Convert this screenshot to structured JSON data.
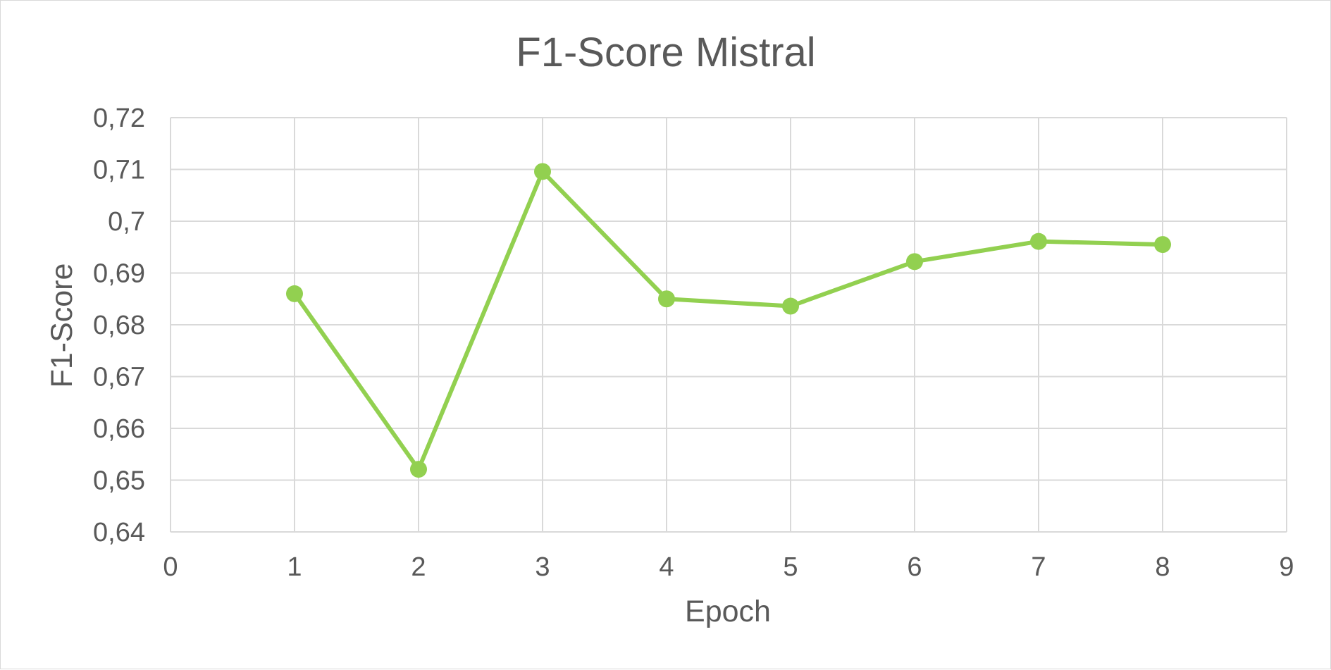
{
  "chart_data": {
    "type": "scatter",
    "title": "F1-Score Mistral",
    "xlabel": "Epoch",
    "ylabel": "F1-Score",
    "xlim": [
      0,
      9
    ],
    "ylim": [
      0.64,
      0.72
    ],
    "x_ticks": [
      "0",
      "1",
      "2",
      "3",
      "4",
      "5",
      "6",
      "7",
      "8",
      "9"
    ],
    "y_ticks": [
      "0,64",
      "0,65",
      "0,66",
      "0,67",
      "0,68",
      "0,69",
      "0,7",
      "0,71",
      "0,72"
    ],
    "grid": true,
    "legend": "none",
    "series": [
      {
        "color": "#92d050",
        "marker": "circle",
        "line": "straight",
        "x": [
          1,
          2,
          3,
          4,
          5,
          6,
          7,
          8
        ],
        "y": [
          0.686,
          0.6521,
          0.7096,
          0.685,
          0.6836,
          0.6922,
          0.6961,
          0.6955
        ]
      }
    ]
  },
  "colors": {
    "grid": "#d9d9d9",
    "text": "#595959",
    "series": "#92d050",
    "border": "#d9d9d9"
  }
}
